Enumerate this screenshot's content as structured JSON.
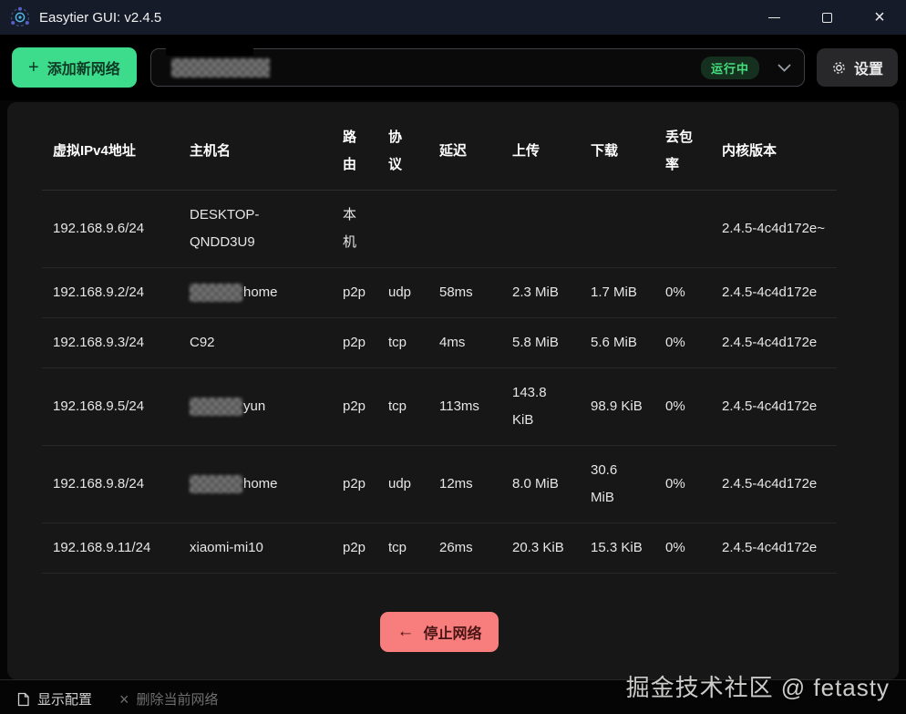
{
  "titlebar": {
    "title": "Easytier GUI: v2.4.5"
  },
  "toolbar": {
    "add_network_label": "添加新网络",
    "network_select": {
      "value": "",
      "value_redacted": true,
      "status_badge": "运行中"
    },
    "settings_label": "设置"
  },
  "peers_table": {
    "columns": [
      "虚拟IPv4地址",
      "主机名",
      "路由",
      "协议",
      "延迟",
      "上传",
      "下载",
      "丢包率",
      "内核版本"
    ],
    "rows": [
      {
        "ip": "192.168.9.6/24",
        "host": {
          "text": "DESKTOP-QNDD3U9",
          "redacted_prefix": false
        },
        "route": "本机",
        "proto": "",
        "latency": "",
        "upload": "",
        "download": "",
        "loss": "",
        "kernel": "2.4.5-4c4d172e~"
      },
      {
        "ip": "192.168.9.2/24",
        "host": {
          "text": "home",
          "redacted_prefix": true
        },
        "route": "p2p",
        "proto": "udp",
        "latency": "58ms",
        "upload": "2.3 MiB",
        "download": "1.7 MiB",
        "loss": "0%",
        "kernel": "2.4.5-4c4d172e"
      },
      {
        "ip": "192.168.9.3/24",
        "host": {
          "text": "C92",
          "redacted_prefix": false
        },
        "route": "p2p",
        "proto": "tcp",
        "latency": "4ms",
        "upload": "5.8 MiB",
        "download": "5.6 MiB",
        "loss": "0%",
        "kernel": "2.4.5-4c4d172e"
      },
      {
        "ip": "192.168.9.5/24",
        "host": {
          "text": "yun",
          "redacted_prefix": true
        },
        "route": "p2p",
        "proto": "tcp",
        "latency": "113ms",
        "upload": "143.8 KiB",
        "download": "98.9 KiB",
        "loss": "0%",
        "kernel": "2.4.5-4c4d172e"
      },
      {
        "ip": "192.168.9.8/24",
        "host": {
          "text": "home",
          "redacted_prefix": true
        },
        "route": "p2p",
        "proto": "udp",
        "latency": "12ms",
        "upload": "8.0 MiB",
        "download": "30.6 MiB",
        "loss": "0%",
        "kernel": "2.4.5-4c4d172e"
      },
      {
        "ip": "192.168.9.11/24",
        "host": {
          "text": "xiaomi-mi10",
          "redacted_prefix": false
        },
        "route": "p2p",
        "proto": "tcp",
        "latency": "26ms",
        "upload": "20.3 KiB",
        "download": "15.3 KiB",
        "loss": "0%",
        "kernel": "2.4.5-4c4d172e"
      }
    ]
  },
  "stop_button_label": "停止网络",
  "footer": {
    "show_config_label": "显示配置",
    "delete_network_label": "删除当前网络"
  },
  "watermark": "掘金技术社区 @ fetasty",
  "colors": {
    "accent_green": "#3ddc8c",
    "status_green": "#45e07e",
    "danger_red": "#f87d7d",
    "titlebar_bg": "#151b28"
  }
}
